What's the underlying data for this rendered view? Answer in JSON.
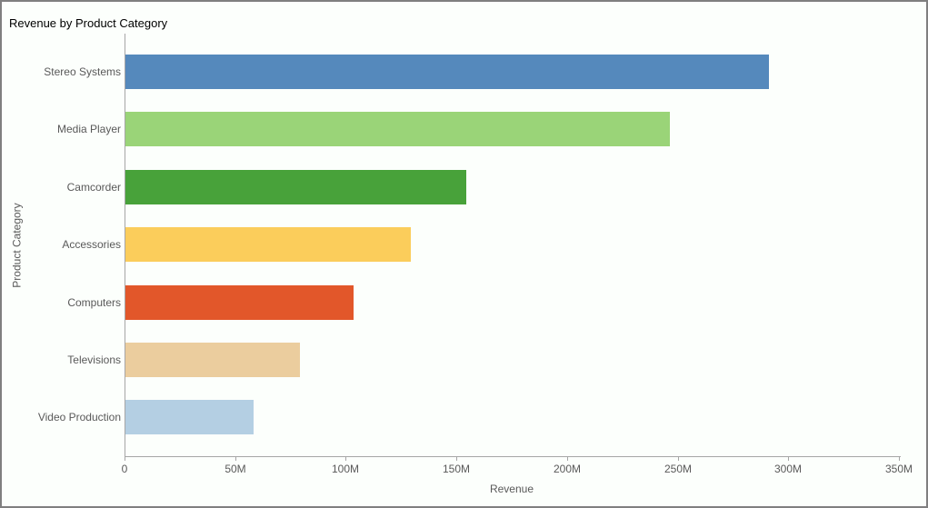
{
  "chart_data": {
    "type": "bar",
    "orientation": "horizontal",
    "title": "Revenue by Product Category",
    "xlabel": "Revenue",
    "ylabel": "Product Category",
    "categories": [
      "Stereo Systems",
      "Media Player",
      "Camcorder",
      "Accessories",
      "Computers",
      "Televisions",
      "Video Production"
    ],
    "values": [
      291,
      246,
      154,
      129,
      103,
      79,
      58
    ],
    "value_unit": "M",
    "xlim": [
      0,
      350
    ],
    "xticks": [
      0,
      50,
      100,
      150,
      200,
      250,
      300,
      350
    ],
    "xtick_labels": [
      "0",
      "50M",
      "100M",
      "150M",
      "200M",
      "250M",
      "300M",
      "350M"
    ],
    "bar_colors": [
      "#5589bc",
      "#9ad478",
      "#48a23a",
      "#fbcd5b",
      "#e2572a",
      "#ebcd9e",
      "#b4cfe3"
    ],
    "grid": false,
    "legend": false,
    "background_color": "#fcfffc",
    "axis_line_color": "#a6a6a6",
    "label_text_color": "#595959",
    "title_text_color": "#000000",
    "border_color": "#7f7f7f"
  }
}
